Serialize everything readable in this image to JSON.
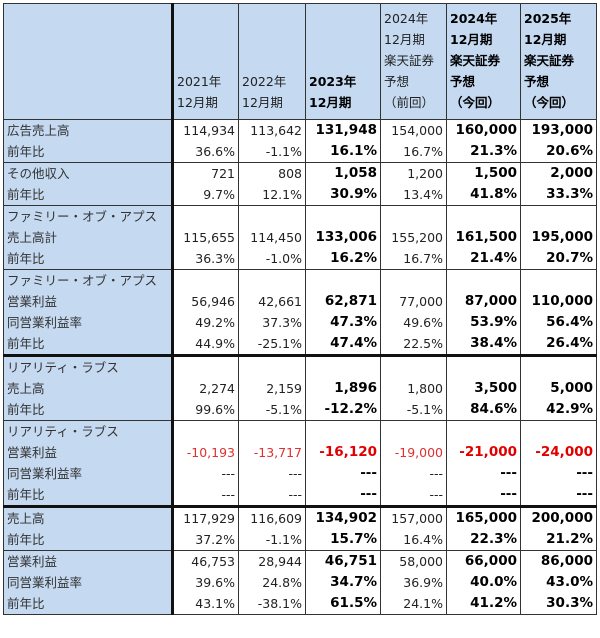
{
  "header": {
    "columns": [
      {
        "label": "2021年\n12月期",
        "bold": false
      },
      {
        "label": "2022年\n12月期",
        "bold": false
      },
      {
        "label": "2023年\n12月期",
        "bold": true
      },
      {
        "label": "2024年\n12月期\n楽天証券\n予想\n（前回）",
        "bold": false
      },
      {
        "label": "2024年\n12月期\n楽天証券\n予想\n（今回）",
        "bold": true
      },
      {
        "label": "2025年\n12月期\n楽天証券\n予想\n（今回）",
        "bold": true
      }
    ]
  },
  "groups": [
    {
      "rows": [
        {
          "label": "広告売上高",
          "values": [
            "114,934",
            "113,642",
            "131,948",
            "154,000",
            "160,000",
            "193,000"
          ]
        },
        {
          "label": "前年比",
          "values": [
            "36.6%",
            "-1.1%",
            "16.1%",
            "16.7%",
            "21.3%",
            "20.6%"
          ]
        }
      ]
    },
    {
      "rows": [
        {
          "label": "その他収入",
          "values": [
            "721",
            "808",
            "1,058",
            "1,200",
            "1,500",
            "2,000"
          ]
        },
        {
          "label": "前年比",
          "values": [
            "9.7%",
            "12.1%",
            "30.9%",
            "13.4%",
            "41.8%",
            "33.3%"
          ]
        }
      ]
    },
    {
      "rows": [
        {
          "label": "ファミリー・オブ・アプス",
          "values": [
            "",
            "",
            "",
            "",
            "",
            ""
          ]
        },
        {
          "label": "売上高計",
          "values": [
            "115,655",
            "114,450",
            "133,006",
            "155,200",
            "161,500",
            "195,000"
          ]
        },
        {
          "label": "前年比",
          "values": [
            "36.3%",
            "-1.0%",
            "16.2%",
            "16.7%",
            "21.4%",
            "20.7%"
          ]
        }
      ]
    },
    {
      "rows": [
        {
          "label": "ファミリー・オブ・アプス",
          "values": [
            "",
            "",
            "",
            "",
            "",
            ""
          ]
        },
        {
          "label": "営業利益",
          "values": [
            "56,946",
            "42,661",
            "62,871",
            "77,000",
            "87,000",
            "110,000"
          ]
        },
        {
          "label": "同営業利益率",
          "values": [
            "49.2%",
            "37.3%",
            "47.3%",
            "49.6%",
            "53.9%",
            "56.4%"
          ]
        },
        {
          "label": "前年比",
          "values": [
            "44.9%",
            "-25.1%",
            "47.4%",
            "22.5%",
            "38.4%",
            "26.4%"
          ]
        }
      ]
    },
    {
      "thick": true,
      "rows": [
        {
          "label": "リアリティ・ラブス",
          "values": [
            "",
            "",
            "",
            "",
            "",
            ""
          ]
        },
        {
          "label": "売上高",
          "values": [
            "2,274",
            "2,159",
            "1,896",
            "1,800",
            "3,500",
            "5,000"
          ]
        },
        {
          "label": "前年比",
          "values": [
            "99.6%",
            "-5.1%",
            "-12.2%",
            "-5.1%",
            "84.6%",
            "42.9%"
          ]
        }
      ]
    },
    {
      "rows": [
        {
          "label": "リアリティ・ラブス",
          "values": [
            "",
            "",
            "",
            "",
            "",
            ""
          ]
        },
        {
          "label": "営業利益",
          "negative": true,
          "values": [
            "-10,193",
            "-13,717",
            "-16,120",
            "-19,000",
            "-21,000",
            "-24,000"
          ]
        },
        {
          "label": "同営業利益率",
          "values": [
            "---",
            "---",
            "---",
            "---",
            "---",
            "---"
          ]
        },
        {
          "label": "前年比",
          "values": [
            "---",
            "---",
            "---",
            "---",
            "---",
            "---"
          ]
        }
      ]
    },
    {
      "thick": true,
      "rows": [
        {
          "label": "売上高",
          "values": [
            "117,929",
            "116,609",
            "134,902",
            "157,000",
            "165,000",
            "200,000"
          ]
        },
        {
          "label": "前年比",
          "values": [
            "37.2%",
            "-1.1%",
            "15.7%",
            "16.4%",
            "22.3%",
            "21.2%"
          ]
        }
      ]
    },
    {
      "rows": [
        {
          "label": "営業利益",
          "values": [
            "46,753",
            "28,944",
            "46,751",
            "58,000",
            "66,000",
            "86,000"
          ]
        },
        {
          "label": "同営業利益率",
          "values": [
            "39.6%",
            "24.8%",
            "34.7%",
            "36.9%",
            "40.0%",
            "43.0%"
          ]
        },
        {
          "label": "前年比",
          "values": [
            "43.1%",
            "-38.1%",
            "61.5%",
            "24.1%",
            "41.2%",
            "30.3%"
          ]
        }
      ]
    }
  ]
}
